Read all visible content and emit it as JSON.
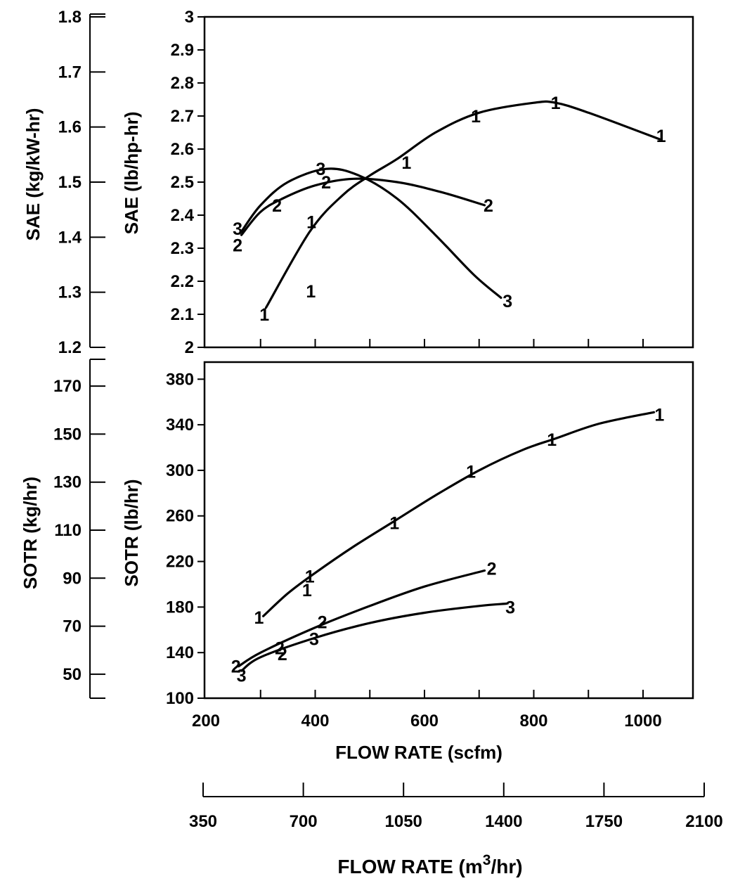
{
  "chart_data": [
    {
      "type": "line",
      "panel": "top",
      "ylabel": "SAE (lb/hp-hr)",
      "ylabel_secondary": "SAE (kg/kW-hr)",
      "xlim": [
        200,
        1100
      ],
      "ylim": [
        2,
        3
      ],
      "ylim_secondary": [
        1.2,
        1.8
      ],
      "yticks": [
        "2",
        "2.1",
        "2.2",
        "2.3",
        "2.4",
        "2.5",
        "2.6",
        "2.7",
        "2.8",
        "2.9",
        "3"
      ],
      "yticks_secondary": [
        "1.2",
        "1.3",
        "1.4",
        "1.5",
        "1.6",
        "1.7",
        "1.8"
      ],
      "grid": false,
      "series": [
        {
          "name": "1",
          "x": [
            310,
            390,
            450,
            500,
            550,
            620,
            700,
            800,
            840,
            900,
            1030
          ],
          "y": [
            2.12,
            2.35,
            2.46,
            2.52,
            2.57,
            2.65,
            2.71,
            2.74,
            2.74,
            2.71,
            2.63
          ]
        },
        {
          "name": "2",
          "x": [
            265,
            300,
            340,
            400,
            470,
            550,
            630,
            710
          ],
          "y": [
            2.34,
            2.41,
            2.45,
            2.49,
            2.51,
            2.5,
            2.47,
            2.43
          ]
        },
        {
          "name": "3",
          "x": [
            265,
            300,
            350,
            420,
            480,
            550,
            620,
            690,
            740
          ],
          "y": [
            2.35,
            2.43,
            2.5,
            2.54,
            2.52,
            2.45,
            2.34,
            2.22,
            2.15
          ]
        }
      ],
      "labels": [
        {
          "text": "1",
          "x": 307,
          "y": 2.1
        },
        {
          "text": "1",
          "x": 393,
          "y": 2.38
        },
        {
          "text": "1",
          "x": 392,
          "y": 2.17
        },
        {
          "text": "1",
          "x": 567,
          "y": 2.56
        },
        {
          "text": "1",
          "x": 694,
          "y": 2.7
        },
        {
          "text": "1",
          "x": 840,
          "y": 2.74
        },
        {
          "text": "1",
          "x": 1033,
          "y": 2.64
        },
        {
          "text": "2",
          "x": 258,
          "y": 2.31
        },
        {
          "text": "2",
          "x": 330,
          "y": 2.43
        },
        {
          "text": "2",
          "x": 420,
          "y": 2.5
        },
        {
          "text": "2",
          "x": 717,
          "y": 2.43
        },
        {
          "text": "3",
          "x": 258,
          "y": 2.36
        },
        {
          "text": "3",
          "x": 410,
          "y": 2.54
        },
        {
          "text": "3",
          "x": 752,
          "y": 2.14
        }
      ]
    },
    {
      "type": "line",
      "panel": "bottom",
      "ylabel": "SOTR (lb/hr)",
      "ylabel_secondary": "SOTR (kg/hr)",
      "xlabel": "FLOW RATE (scfm)",
      "xlabel_secondary_prefix": "FLOW RATE (m",
      "xlabel_secondary_sup": "3",
      "xlabel_secondary_suffix": "/hr)",
      "xlim": [
        200,
        1100
      ],
      "xlim_secondary": [
        330,
        2100
      ],
      "ylim": [
        100,
        395
      ],
      "ylim_secondary": [
        40,
        180
      ],
      "xticks": [
        "200",
        "400",
        "600",
        "800",
        "1000"
      ],
      "xticks_secondary": [
        "350",
        "700",
        "1050",
        "1400",
        "1750",
        "2100"
      ],
      "yticks": [
        "100",
        "140",
        "180",
        "220",
        "260",
        "300",
        "340",
        "380"
      ],
      "yticks_secondary": [
        "50",
        "70",
        "90",
        "110",
        "130",
        "150",
        "170"
      ],
      "grid": false,
      "series": [
        {
          "name": "1",
          "x": [
            305,
            350,
            400,
            470,
            550,
            620,
            700,
            780,
            840,
            920,
            1020
          ],
          "y": [
            172,
            192,
            210,
            233,
            257,
            278,
            300,
            318,
            328,
            341,
            351
          ]
        },
        {
          "name": "2",
          "x": [
            260,
            300,
            400,
            500,
            600,
            710
          ],
          "y": [
            128,
            140,
            162,
            181,
            198,
            212
          ]
        },
        {
          "name": "3",
          "x": [
            265,
            300,
            400,
            500,
            600,
            700,
            750
          ],
          "y": [
            124,
            136,
            153,
            166,
            175,
            181,
            183
          ]
        }
      ],
      "labels": [
        {
          "text": "1",
          "x": 297,
          "y": 171
        },
        {
          "text": "1",
          "x": 385,
          "y": 195
        },
        {
          "text": "1",
          "x": 390,
          "y": 207
        },
        {
          "text": "1",
          "x": 545,
          "y": 254
        },
        {
          "text": "1",
          "x": 685,
          "y": 299
        },
        {
          "text": "1",
          "x": 833,
          "y": 327
        },
        {
          "text": "1",
          "x": 1030,
          "y": 349
        },
        {
          "text": "2",
          "x": 255,
          "y": 128
        },
        {
          "text": "2",
          "x": 335,
          "y": 144
        },
        {
          "text": "2",
          "x": 340,
          "y": 139
        },
        {
          "text": "2",
          "x": 413,
          "y": 167
        },
        {
          "text": "2",
          "x": 723,
          "y": 214
        },
        {
          "text": "3",
          "x": 265,
          "y": 120
        },
        {
          "text": "3",
          "x": 398,
          "y": 152
        },
        {
          "text": "3",
          "x": 757,
          "y": 180
        }
      ]
    }
  ]
}
